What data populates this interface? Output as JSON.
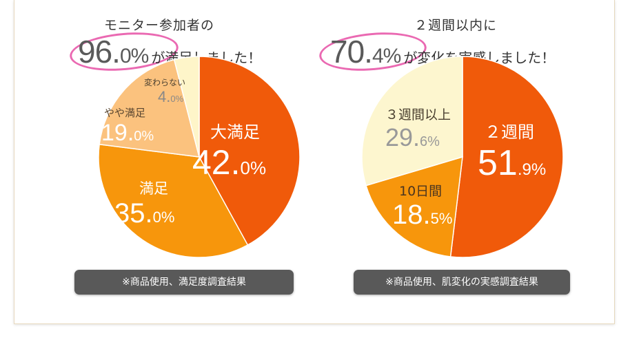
{
  "chart_data": [
    {
      "type": "pie",
      "title_line1": "モニター参加者の",
      "headline_value": "96.",
      "headline_decimal": "0%",
      "headline_suffix": "が満足しました！",
      "slices": [
        {
          "name": "大満足",
          "value": 42.0,
          "int": "42.",
          "dec": "0%",
          "color": "#f05a0a"
        },
        {
          "name": "満足",
          "value": 35.0,
          "int": "35.",
          "dec": "0%",
          "color": "#f7960c"
        },
        {
          "name": "やや満足",
          "value": 19.0,
          "int": "19.",
          "dec": "0%",
          "color": "#fbc27e"
        },
        {
          "name": "変わらない",
          "value": 4.0,
          "int": "4.",
          "dec": "0%",
          "color": "#fef5c9"
        }
      ],
      "note": "※商品使用、満足度調査結果"
    },
    {
      "type": "pie",
      "title_line1": "２週間以内に",
      "headline_value": "70.",
      "headline_decimal": "4%",
      "headline_suffix": "が変化を実感しました！",
      "slices": [
        {
          "name": "２週間",
          "value": 51.9,
          "int": "51",
          "dec": ".9%",
          "color": "#f05a0a"
        },
        {
          "name": "10日間",
          "value": 18.5,
          "int": "18.",
          "dec": "5%",
          "color": "#f7960c"
        },
        {
          "name": "３週間以上",
          "value": 29.6,
          "int": "29.",
          "dec": "6%",
          "color": "#fdf6cf"
        }
      ],
      "note": "※商品使用、肌変化の実感調査結果"
    }
  ]
}
